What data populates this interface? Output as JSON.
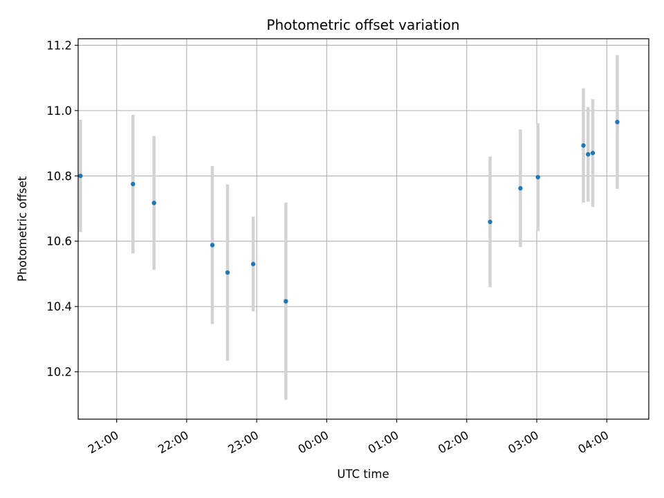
{
  "chart_data": {
    "type": "scatter",
    "title": "Photometric offset variation",
    "xlabel": "UTC time",
    "ylabel": "Photometric offset",
    "x_tick_labels": [
      "21:00",
      "22:00",
      "23:00",
      "00:00",
      "01:00",
      "02:00",
      "03:00",
      "04:00"
    ],
    "y_tick_labels": [
      "10.2",
      "10.4",
      "10.6",
      "10.8",
      "11.0",
      "11.2"
    ],
    "y_ticks": [
      10.2,
      10.4,
      10.6,
      10.8,
      11.0,
      11.2
    ],
    "xlim": [
      "20:27",
      "04:36"
    ],
    "ylim": [
      10.055,
      11.22
    ],
    "grid": true,
    "points": [
      {
        "time": "20:29",
        "y": 10.8,
        "err": 0.172
      },
      {
        "time": "21:14",
        "y": 10.775,
        "err": 0.212
      },
      {
        "time": "21:32",
        "y": 10.717,
        "err": 0.205
      },
      {
        "time": "22:22",
        "y": 10.588,
        "err": 0.242
      },
      {
        "time": "22:35",
        "y": 10.504,
        "err": 0.27
      },
      {
        "time": "22:57",
        "y": 10.53,
        "err": 0.145
      },
      {
        "time": "23:25",
        "y": 10.416,
        "err": 0.302
      },
      {
        "time": "02:20",
        "y": 10.659,
        "err": 0.2
      },
      {
        "time": "02:46",
        "y": 10.762,
        "err": 0.18
      },
      {
        "time": "03:01",
        "y": 10.796,
        "err": 0.165
      },
      {
        "time": "03:40",
        "y": 10.893,
        "err": 0.175
      },
      {
        "time": "03:44",
        "y": 10.866,
        "err": 0.145
      },
      {
        "time": "03:48",
        "y": 10.87,
        "err": 0.165
      },
      {
        "time": "04:09",
        "y": 10.965,
        "err": 0.205
      }
    ],
    "colors": {
      "marker": "#1f77b4",
      "errorbar": "#d3d3d3",
      "grid": "#b0b0b0",
      "axes": "#000000"
    }
  }
}
